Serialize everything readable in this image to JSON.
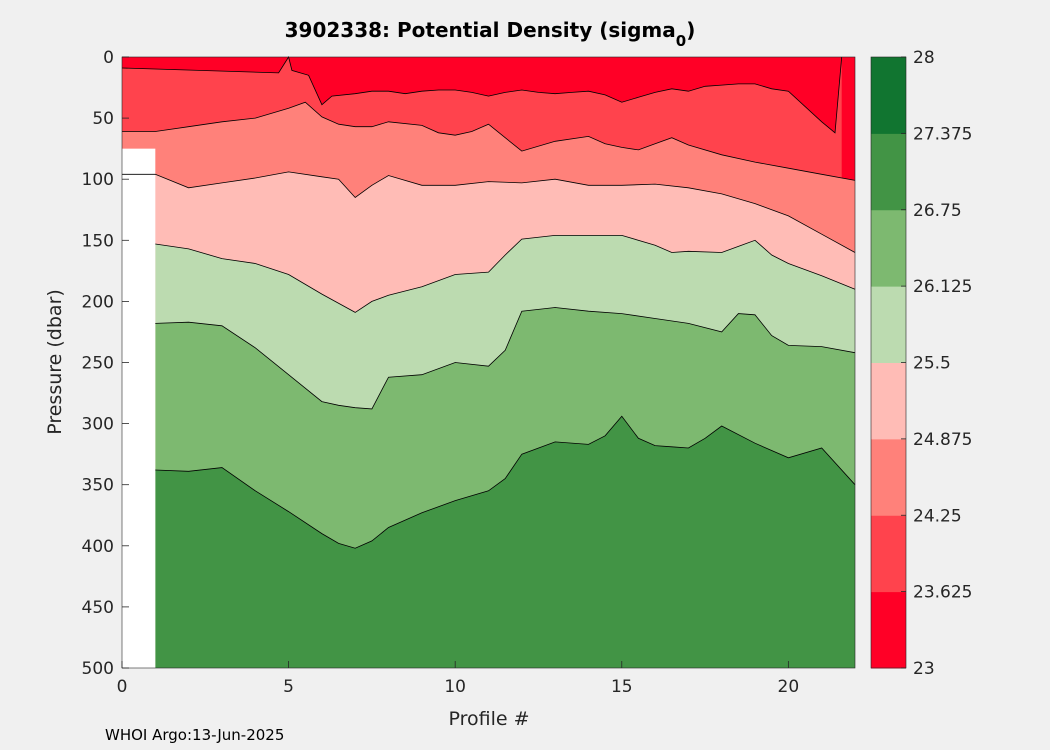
{
  "title": {
    "text": "3902338: Potential Density (sigma",
    "subscript": "0",
    "close": ")"
  },
  "footer": "WHOI Argo:13-Jun-2025",
  "colors": {
    "background": "#f0f0f0",
    "bands": [
      "#ff0026",
      "#ff434d",
      "#ff817a",
      "#ffbcb6",
      "#bcdbb0",
      "#7db970",
      "#429445",
      "#117530"
    ],
    "contour_line": "#000000",
    "no_data": "#ffffff"
  },
  "chart_data": {
    "type": "heatmap",
    "subtype": "filled-contour",
    "xlabel": "Profile #",
    "ylabel": "Pressure (dbar)",
    "xlim": [
      0,
      22
    ],
    "ylim": [
      0,
      500
    ],
    "y_reversed": true,
    "grid": false,
    "xticks": [
      0,
      5,
      10,
      15,
      20
    ],
    "yticks": [
      0,
      50,
      100,
      150,
      200,
      250,
      300,
      350,
      400,
      450,
      500
    ],
    "no_data_region": {
      "x": [
        0,
        1
      ],
      "y_from": 75
    },
    "colorbar": {
      "levels": [
        23,
        23.625,
        24.25,
        24.875,
        25.5,
        26.125,
        26.75,
        27.375,
        28
      ],
      "tick_labels": [
        "23",
        "23.625",
        "24.25",
        "24.875",
        "25.5",
        "26.125",
        "26.75",
        "27.375",
        "28"
      ]
    },
    "isopycnals": [
      {
        "level": 23.625,
        "points": [
          [
            0,
            9
          ],
          [
            4.7,
            13
          ],
          [
            5,
            0
          ],
          [
            5.1,
            11
          ],
          [
            5.6,
            15
          ],
          [
            6,
            39
          ],
          [
            6.3,
            32
          ],
          [
            7,
            30
          ],
          [
            7.5,
            28
          ],
          [
            8,
            28
          ],
          [
            8.5,
            30
          ],
          [
            9,
            28
          ],
          [
            9.5,
            27
          ],
          [
            10,
            27
          ],
          [
            10.5,
            29
          ],
          [
            11,
            32
          ],
          [
            11.5,
            29
          ],
          [
            12,
            27
          ],
          [
            12.5,
            29
          ],
          [
            13,
            30
          ],
          [
            13.5,
            29
          ],
          [
            14,
            28
          ],
          [
            14.5,
            31
          ],
          [
            15,
            37
          ],
          [
            15.5,
            33
          ],
          [
            16,
            29
          ],
          [
            16.5,
            26
          ],
          [
            17,
            28
          ],
          [
            17.5,
            24
          ],
          [
            18,
            23
          ],
          [
            18.5,
            22
          ],
          [
            19,
            22
          ],
          [
            19.5,
            26
          ],
          [
            20,
            28
          ],
          [
            21,
            53
          ],
          [
            21.4,
            62
          ],
          [
            21.6,
            0
          ]
        ]
      },
      {
        "level": 24.25,
        "points": [
          [
            0,
            61
          ],
          [
            0.5,
            61
          ],
          [
            1,
            61
          ],
          [
            2,
            57
          ],
          [
            3,
            53
          ],
          [
            4,
            50
          ],
          [
            5,
            42
          ],
          [
            5.5,
            37
          ],
          [
            6,
            49
          ],
          [
            6.5,
            55
          ],
          [
            7,
            57
          ],
          [
            7.5,
            57
          ],
          [
            8,
            53
          ],
          [
            9,
            56
          ],
          [
            9.5,
            62
          ],
          [
            10,
            64
          ],
          [
            10.5,
            61
          ],
          [
            11,
            55
          ],
          [
            11.5,
            66
          ],
          [
            12,
            77
          ],
          [
            13,
            69
          ],
          [
            14,
            65
          ],
          [
            14.5,
            71
          ],
          [
            15,
            74
          ],
          [
            15.5,
            76
          ],
          [
            16,
            71
          ],
          [
            16.5,
            66
          ],
          [
            17,
            72
          ],
          [
            18,
            80
          ],
          [
            19,
            86
          ],
          [
            20,
            91
          ],
          [
            21,
            96
          ],
          [
            22,
            101
          ]
        ]
      },
      {
        "level": 24.875,
        "points": [
          [
            0,
            96
          ],
          [
            0.5,
            96
          ],
          [
            1,
            96
          ],
          [
            2,
            107
          ],
          [
            3,
            103
          ],
          [
            4,
            99
          ],
          [
            5,
            94
          ],
          [
            6,
            98
          ],
          [
            6.5,
            100
          ],
          [
            7,
            115
          ],
          [
            7.5,
            105
          ],
          [
            8,
            97
          ],
          [
            9,
            105
          ],
          [
            10,
            105
          ],
          [
            11,
            102
          ],
          [
            12,
            103
          ],
          [
            13,
            100
          ],
          [
            14,
            105
          ],
          [
            15,
            105
          ],
          [
            16,
            104
          ],
          [
            17,
            107
          ],
          [
            18,
            112
          ],
          [
            19,
            120
          ],
          [
            20,
            130
          ],
          [
            21,
            145
          ],
          [
            22,
            160
          ]
        ]
      },
      {
        "level": 25.5,
        "points": [
          [
            1,
            153
          ],
          [
            2,
            157
          ],
          [
            3,
            165
          ],
          [
            4,
            169
          ],
          [
            5,
            178
          ],
          [
            6,
            194
          ],
          [
            7,
            209
          ],
          [
            7.5,
            200
          ],
          [
            8,
            195
          ],
          [
            9,
            188
          ],
          [
            10,
            178
          ],
          [
            11,
            176
          ],
          [
            11.5,
            162
          ],
          [
            12,
            149
          ],
          [
            13,
            146
          ],
          [
            14,
            146
          ],
          [
            15,
            146
          ],
          [
            16,
            154
          ],
          [
            16.5,
            160
          ],
          [
            17,
            159
          ],
          [
            18,
            160
          ],
          [
            18.5,
            155
          ],
          [
            19,
            150
          ],
          [
            19.5,
            162
          ],
          [
            20,
            169
          ],
          [
            21,
            179
          ],
          [
            22,
            190
          ]
        ]
      },
      {
        "level": 26.125,
        "points": [
          [
            1,
            218
          ],
          [
            2,
            217
          ],
          [
            3,
            220
          ],
          [
            4,
            238
          ],
          [
            5,
            260
          ],
          [
            6,
            282
          ],
          [
            6.5,
            285
          ],
          [
            7,
            287
          ],
          [
            7.5,
            288
          ],
          [
            8,
            262
          ],
          [
            9,
            260
          ],
          [
            10,
            250
          ],
          [
            11,
            253
          ],
          [
            11.5,
            240
          ],
          [
            12,
            208
          ],
          [
            13,
            205
          ],
          [
            14,
            208
          ],
          [
            15,
            210
          ],
          [
            16,
            214
          ],
          [
            17,
            218
          ],
          [
            18,
            225
          ],
          [
            18.5,
            210
          ],
          [
            19,
            211
          ],
          [
            19.5,
            228
          ],
          [
            20,
            236
          ],
          [
            21,
            237
          ],
          [
            22,
            242
          ]
        ]
      },
      {
        "level": 26.75,
        "points": [
          [
            1,
            338
          ],
          [
            2,
            339
          ],
          [
            3,
            336
          ],
          [
            4,
            355
          ],
          [
            5,
            372
          ],
          [
            6,
            390
          ],
          [
            6.5,
            398
          ],
          [
            7,
            402
          ],
          [
            7.5,
            396
          ],
          [
            8,
            385
          ],
          [
            9,
            373
          ],
          [
            10,
            363
          ],
          [
            11,
            355
          ],
          [
            11.5,
            345
          ],
          [
            12,
            325
          ],
          [
            13,
            315
          ],
          [
            14,
            317
          ],
          [
            14.5,
            310
          ],
          [
            15,
            294
          ],
          [
            15.5,
            312
          ],
          [
            16,
            318
          ],
          [
            16.5,
            319
          ],
          [
            17,
            320
          ],
          [
            17.5,
            312
          ],
          [
            18,
            302
          ],
          [
            19,
            316
          ],
          [
            20,
            328
          ],
          [
            21,
            320
          ],
          [
            22,
            350
          ]
        ]
      }
    ]
  }
}
